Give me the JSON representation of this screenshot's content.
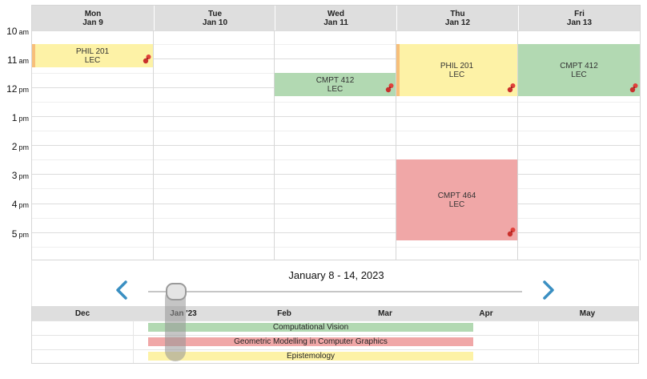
{
  "calendar": {
    "days": [
      {
        "weekday": "Mon",
        "date": "Jan 9"
      },
      {
        "weekday": "Tue",
        "date": "Jan 10"
      },
      {
        "weekday": "Wed",
        "date": "Jan 11"
      },
      {
        "weekday": "Thu",
        "date": "Jan 12"
      },
      {
        "weekday": "Fri",
        "date": "Jan 13"
      }
    ],
    "hours": [
      {
        "hour": "10",
        "ampm": "am"
      },
      {
        "hour": "11",
        "ampm": "am"
      },
      {
        "hour": "12",
        "ampm": "pm"
      },
      {
        "hour": "1",
        "ampm": "pm"
      },
      {
        "hour": "2",
        "ampm": "pm"
      },
      {
        "hour": "3",
        "ampm": "pm"
      },
      {
        "hour": "4",
        "ampm": "pm"
      },
      {
        "hour": "5",
        "ampm": "pm"
      }
    ],
    "events": [
      {
        "course": "PHIL 201",
        "type": "LEC",
        "day": 0,
        "color": "#fdf2a6"
      },
      {
        "course": "CMPT 412",
        "type": "LEC",
        "day": 2,
        "color": "#b2d9b2"
      },
      {
        "course": "PHIL 201",
        "type": "LEC",
        "day": 3,
        "color": "#fdf2a6"
      },
      {
        "course": "CMPT 412",
        "type": "LEC",
        "day": 4,
        "color": "#b2d9b2"
      },
      {
        "course": "CMPT 464",
        "type": "LEC",
        "day": 3,
        "color": "#f0a7a7"
      }
    ]
  },
  "navigation": {
    "week_range": "January 8 - 14, 2023",
    "prev_icon": "chevron-left-icon",
    "next_icon": "chevron-right-icon",
    "accent": "#3a8fc2"
  },
  "timeline": {
    "months": [
      "Dec",
      "Jan '23",
      "Feb",
      "Mar",
      "Apr",
      "May"
    ],
    "courses": [
      {
        "name": "Computational Vision",
        "color": "#b2d9b2"
      },
      {
        "name": "Geometric Modelling in Computer Graphics",
        "color": "#f0a7a7"
      },
      {
        "name": "Epistemology",
        "color": "#fdf2a6"
      }
    ]
  }
}
